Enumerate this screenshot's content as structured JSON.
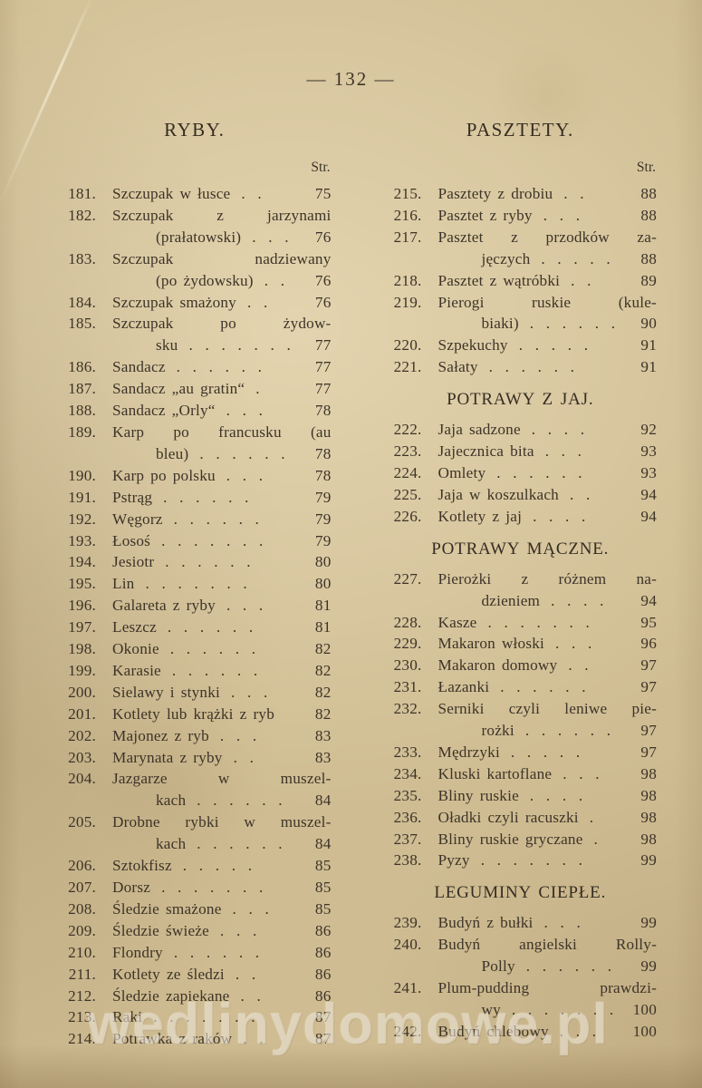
{
  "page": {
    "number_label": "— 132 —",
    "watermark": "wedlinydomowe.pl"
  },
  "colors": {
    "paper": "#cfbc92",
    "ink": "#3d3428",
    "watermark": "rgba(255,253,242,0.34)"
  },
  "columns": [
    {
      "header": "RYBY.",
      "str_label": "Str.",
      "blocks": [
        {
          "type": "entry",
          "num": "181.",
          "lines": [
            {
              "text": "Szczupak w łusce",
              "dots": 2,
              "page": "75"
            }
          ]
        },
        {
          "type": "entry",
          "num": "182.",
          "lines": [
            {
              "text": "Szczupak z jarzynami"
            },
            {
              "text": "(prałatowski)",
              "dots": 3,
              "page": "76"
            }
          ]
        },
        {
          "type": "entry",
          "num": "183.",
          "lines": [
            {
              "text": "Szczupak nadziewany"
            },
            {
              "text": "(po żydowsku)",
              "dots": 3,
              "page": "76"
            }
          ]
        },
        {
          "type": "entry",
          "num": "184.",
          "lines": [
            {
              "text": "Szczupak smażony",
              "dots": 2,
              "page": "76"
            }
          ]
        },
        {
          "type": "entry",
          "num": "185.",
          "lines": [
            {
              "text": "Szczupak po żydow-"
            },
            {
              "text": "sku",
              "dots": 7,
              "page": "77"
            }
          ]
        },
        {
          "type": "entry",
          "num": "186.",
          "lines": [
            {
              "text": "Sandacz",
              "dots": 6,
              "page": "77"
            }
          ]
        },
        {
          "type": "entry",
          "num": "187.",
          "lines": [
            {
              "text": "Sandacz „au gratin“",
              "dots": 1,
              "page": "77"
            }
          ]
        },
        {
          "type": "entry",
          "num": "188.",
          "lines": [
            {
              "text": "Sandacz „Orly“",
              "dots": 3,
              "page": "78"
            }
          ]
        },
        {
          "type": "entry",
          "num": "189.",
          "lines": [
            {
              "text": "Karp po francusku (au"
            },
            {
              "text": "bleu)",
              "dots": 6,
              "page": "78"
            }
          ]
        },
        {
          "type": "entry",
          "num": "190.",
          "lines": [
            {
              "text": "Karp po polsku",
              "dots": 3,
              "page": "78"
            }
          ]
        },
        {
          "type": "entry",
          "num": "191.",
          "lines": [
            {
              "text": "Pstrąg",
              "dots": 6,
              "page": "79"
            }
          ]
        },
        {
          "type": "entry",
          "num": "192.",
          "lines": [
            {
              "text": "Węgorz",
              "dots": 6,
              "page": "79"
            }
          ]
        },
        {
          "type": "entry",
          "num": "193.",
          "lines": [
            {
              "text": "Łosoś",
              "dots": 7,
              "page": "79"
            }
          ]
        },
        {
          "type": "entry",
          "num": "194.",
          "lines": [
            {
              "text": "Jesiotr",
              "dots": 6,
              "page": "80"
            }
          ]
        },
        {
          "type": "entry",
          "num": "195.",
          "lines": [
            {
              "text": "Lin",
              "dots": 7,
              "page": "80"
            }
          ]
        },
        {
          "type": "entry",
          "num": "196.",
          "lines": [
            {
              "text": "Galareta z ryby",
              "dots": 3,
              "page": "81"
            }
          ]
        },
        {
          "type": "entry",
          "num": "197.",
          "lines": [
            {
              "text": "Leszcz",
              "dots": 6,
              "page": "81"
            }
          ]
        },
        {
          "type": "entry",
          "num": "198.",
          "lines": [
            {
              "text": "Okonie",
              "dots": 6,
              "page": "82"
            }
          ]
        },
        {
          "type": "entry",
          "num": "199.",
          "lines": [
            {
              "text": "Karasie",
              "dots": 6,
              "page": "82"
            }
          ]
        },
        {
          "type": "entry",
          "num": "200.",
          "lines": [
            {
              "text": "Sielawy i stynki",
              "dots": 3,
              "page": "82"
            }
          ]
        },
        {
          "type": "entry",
          "num": "201.",
          "lines": [
            {
              "text": "Kotlety lub krążki z ryb",
              "dots": 0,
              "page": "82"
            }
          ]
        },
        {
          "type": "entry",
          "num": "202.",
          "lines": [
            {
              "text": "Majonez z ryb",
              "dots": 3,
              "page": "83"
            }
          ]
        },
        {
          "type": "entry",
          "num": "203.",
          "lines": [
            {
              "text": "Marynata z ryby",
              "dots": 2,
              "page": "83"
            }
          ]
        },
        {
          "type": "entry",
          "num": "204.",
          "lines": [
            {
              "text": "Jazgarze w muszel-"
            },
            {
              "text": "kach",
              "dots": 6,
              "page": "84"
            }
          ]
        },
        {
          "type": "entry",
          "num": "205.",
          "lines": [
            {
              "text": "Drobne rybki w muszel-"
            },
            {
              "text": "kach",
              "dots": 6,
              "page": "84"
            }
          ]
        },
        {
          "type": "entry",
          "num": "206.",
          "lines": [
            {
              "text": "Sztokfisz",
              "dots": 5,
              "page": "85"
            }
          ]
        },
        {
          "type": "entry",
          "num": "207.",
          "lines": [
            {
              "text": "Dorsz",
              "dots": 7,
              "page": "85"
            }
          ]
        },
        {
          "type": "entry",
          "num": "208.",
          "lines": [
            {
              "text": "Śledzie smażone",
              "dots": 3,
              "page": "85"
            }
          ]
        },
        {
          "type": "entry",
          "num": "209.",
          "lines": [
            {
              "text": "Śledzie świeże",
              "dots": 3,
              "page": "86"
            }
          ]
        },
        {
          "type": "entry",
          "num": "210.",
          "lines": [
            {
              "text": "Flondry",
              "dots": 6,
              "page": "86"
            }
          ]
        },
        {
          "type": "entry",
          "num": "211.",
          "lines": [
            {
              "text": "Kotlety ze śledzi",
              "dots": 2,
              "page": "86"
            }
          ]
        },
        {
          "type": "entry",
          "num": "212.",
          "lines": [
            {
              "text": "Śledzie zapiekane",
              "dots": 2,
              "page": "86"
            }
          ]
        },
        {
          "type": "entry",
          "num": "213.",
          "lines": [
            {
              "text": "Raki",
              "dots": 7,
              "page": "87"
            }
          ]
        },
        {
          "type": "entry",
          "num": "214.",
          "lines": [
            {
              "text": "Potrawka z raków",
              "dots": 2,
              "page": "87"
            }
          ]
        }
      ]
    },
    {
      "header": "PASZTETY.",
      "str_label": "Str.",
      "blocks": [
        {
          "type": "entry",
          "num": "215.",
          "lines": [
            {
              "text": "Pasztety z drobiu",
              "dots": 2,
              "page": "88"
            }
          ]
        },
        {
          "type": "entry",
          "num": "216.",
          "lines": [
            {
              "text": "Pasztet z ryby",
              "dots": 3,
              "page": "88"
            }
          ]
        },
        {
          "type": "entry",
          "num": "217.",
          "lines": [
            {
              "text": "Pasztet z przodków za-"
            },
            {
              "text": "jęczych",
              "dots": 5,
              "page": "88"
            }
          ]
        },
        {
          "type": "entry",
          "num": "218.",
          "lines": [
            {
              "text": "Pasztet z wątróbki",
              "dots": 2,
              "page": "89"
            }
          ]
        },
        {
          "type": "entry",
          "num": "219.",
          "lines": [
            {
              "text": "Pierogi ruskie (kule-"
            },
            {
              "text": "biaki)",
              "dots": 6,
              "page": "90"
            }
          ]
        },
        {
          "type": "entry",
          "num": "220.",
          "lines": [
            {
              "text": "Szpekuchy",
              "dots": 5,
              "page": "91"
            }
          ]
        },
        {
          "type": "entry",
          "num": "221.",
          "lines": [
            {
              "text": "Sałaty",
              "dots": 6,
              "page": "91"
            }
          ]
        },
        {
          "type": "section",
          "text": "POTRAWY Z JAJ."
        },
        {
          "type": "entry",
          "num": "222.",
          "lines": [
            {
              "text": "Jaja sadzone",
              "dots": 4,
              "page": "92"
            }
          ]
        },
        {
          "type": "entry",
          "num": "223.",
          "lines": [
            {
              "text": "Jajecznica bita",
              "dots": 3,
              "page": "93"
            }
          ]
        },
        {
          "type": "entry",
          "num": "224.",
          "lines": [
            {
              "text": "Omlety",
              "dots": 6,
              "page": "93"
            }
          ]
        },
        {
          "type": "entry",
          "num": "225.",
          "lines": [
            {
              "text": "Jaja w koszulkach",
              "dots": 2,
              "page": "94"
            }
          ]
        },
        {
          "type": "entry",
          "num": "226.",
          "lines": [
            {
              "text": "Kotlety z jaj",
              "dots": 4,
              "page": "94"
            }
          ]
        },
        {
          "type": "section",
          "text": "POTRAWY MĄCZNE."
        },
        {
          "type": "entry",
          "num": "227.",
          "lines": [
            {
              "text": "Pierożki z różnem na-"
            },
            {
              "text": "dzieniem",
              "dots": 5,
              "page": "94"
            }
          ]
        },
        {
          "type": "entry",
          "num": "228.",
          "lines": [
            {
              "text": "Kasze",
              "dots": 7,
              "page": "95"
            }
          ]
        },
        {
          "type": "entry",
          "num": "229.",
          "lines": [
            {
              "text": "Makaron włoski",
              "dots": 3,
              "page": "96"
            }
          ]
        },
        {
          "type": "entry",
          "num": "230.",
          "lines": [
            {
              "text": "Makaron domowy",
              "dots": 2,
              "page": "97"
            }
          ]
        },
        {
          "type": "entry",
          "num": "231.",
          "lines": [
            {
              "text": "Łazanki",
              "dots": 6,
              "page": "97"
            }
          ]
        },
        {
          "type": "entry",
          "num": "232.",
          "lines": [
            {
              "text": "Serniki czyli leniwe pie-"
            },
            {
              "text": "rożki",
              "dots": 6,
              "page": "97"
            }
          ]
        },
        {
          "type": "entry",
          "num": "233.",
          "lines": [
            {
              "text": "Mędrzyki",
              "dots": 5,
              "page": "97"
            }
          ]
        },
        {
          "type": "entry",
          "num": "234.",
          "lines": [
            {
              "text": "Kluski kartoflane",
              "dots": 3,
              "page": "98"
            }
          ]
        },
        {
          "type": "entry",
          "num": "235.",
          "lines": [
            {
              "text": "Bliny ruskie",
              "dots": 4,
              "page": "98"
            }
          ]
        },
        {
          "type": "entry",
          "num": "236.",
          "lines": [
            {
              "text": "Oładki czyli racuszki",
              "dots": 1,
              "page": "98"
            }
          ]
        },
        {
          "type": "entry",
          "num": "237.",
          "lines": [
            {
              "text": "Bliny ruskie gryczane",
              "dots": 1,
              "page": "98"
            }
          ]
        },
        {
          "type": "entry",
          "num": "238.",
          "lines": [
            {
              "text": "Pyzy",
              "dots": 7,
              "page": "99"
            }
          ]
        },
        {
          "type": "section",
          "text": "LEGUMINY CIEPŁE."
        },
        {
          "type": "entry",
          "num": "239.",
          "lines": [
            {
              "text": "Budyń z bułki",
              "dots": 3,
              "page": "99"
            }
          ]
        },
        {
          "type": "entry",
          "num": "240.",
          "lines": [
            {
              "text": "Budyń angielski Rolly-"
            },
            {
              "text": "Polly",
              "dots": 6,
              "page": "99"
            }
          ]
        },
        {
          "type": "entry",
          "num": "241.",
          "lines": [
            {
              "text": "Plum-pudding prawdzi-"
            },
            {
              "text": "wy",
              "dots": 7,
              "page": "100"
            }
          ]
        },
        {
          "type": "entry",
          "num": "242.",
          "lines": [
            {
              "text": "Budyń chlebowy",
              "dots": 3,
              "page": "100"
            }
          ]
        }
      ]
    }
  ]
}
